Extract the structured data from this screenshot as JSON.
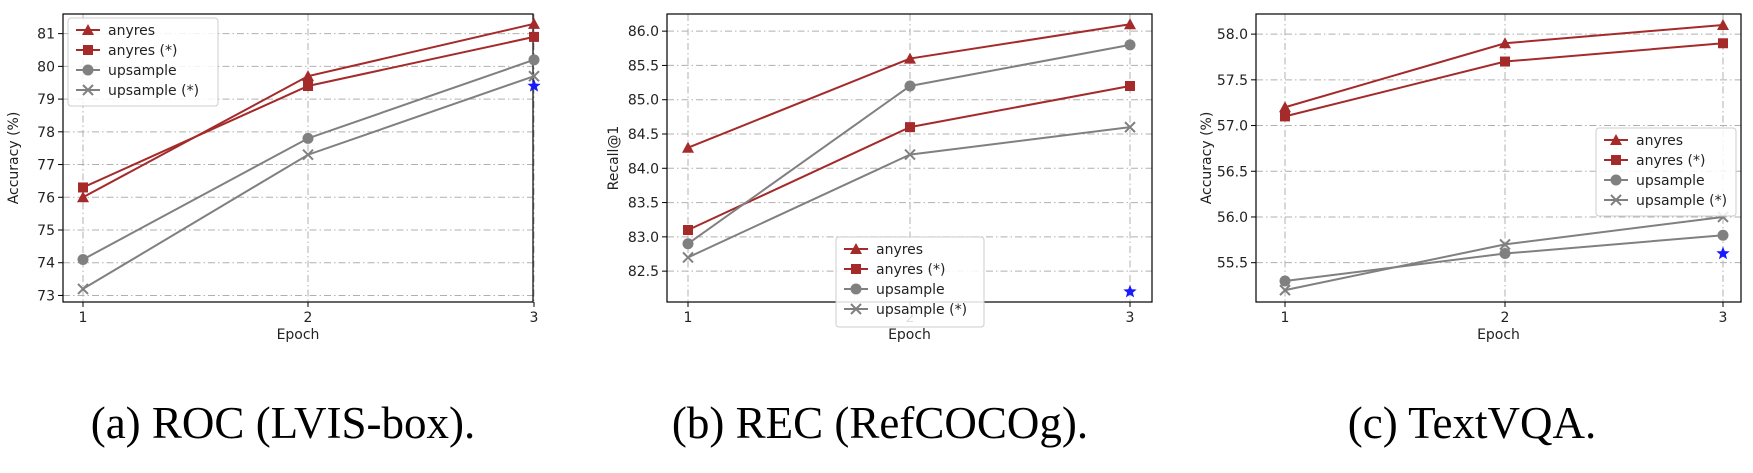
{
  "colors": {
    "anyres": "#a52a2a",
    "upsample": "#808080",
    "star": "#1a1aff",
    "grid": "#b0b0b0"
  },
  "chart_data": [
    {
      "type": "line",
      "caption": "(a) ROC (LVIS-box).",
      "xlabel": "Epoch",
      "ylabel": "Accuracy (%)",
      "x": [
        1,
        2,
        3
      ],
      "xticks": [
        "1",
        "2",
        "3"
      ],
      "yticks": [
        "73",
        "74",
        "75",
        "76",
        "77",
        "78",
        "79",
        "80",
        "81"
      ],
      "ylim": [
        72.8,
        81.6
      ],
      "grid": true,
      "legend_position": "upper-left",
      "series": [
        {
          "name": "anyres",
          "color": "#a52a2a",
          "marker": "triangle",
          "values": [
            76.0,
            79.7,
            81.3
          ]
        },
        {
          "name": "anyres (*)",
          "color": "#a52a2a",
          "marker": "square",
          "values": [
            76.3,
            79.4,
            80.9
          ]
        },
        {
          "name": "upsample",
          "color": "#808080",
          "marker": "circle",
          "values": [
            74.1,
            77.8,
            80.2
          ]
        },
        {
          "name": "upsample (*)",
          "color": "#808080",
          "marker": "x",
          "values": [
            73.2,
            77.3,
            79.7
          ]
        }
      ],
      "star_point": {
        "x": 3,
        "y": 79.4
      }
    },
    {
      "type": "line",
      "caption": "(b) REC (RefCOCOg).",
      "xlabel": "Epoch",
      "ylabel": "Recall@1",
      "x": [
        1,
        2,
        3
      ],
      "xticks": [
        "1",
        "2",
        "3"
      ],
      "yticks": [
        "82.5",
        "83.0",
        "83.5",
        "84.0",
        "84.5",
        "85.0",
        "85.5",
        "86.0"
      ],
      "ylim": [
        82.05,
        86.25
      ],
      "grid": true,
      "legend_position": "lower-right",
      "series": [
        {
          "name": "anyres",
          "color": "#a52a2a",
          "marker": "triangle",
          "values": [
            84.3,
            85.6,
            86.1
          ]
        },
        {
          "name": "anyres (*)",
          "color": "#a52a2a",
          "marker": "square",
          "values": [
            83.1,
            84.6,
            85.2
          ]
        },
        {
          "name": "upsample",
          "color": "#808080",
          "marker": "circle",
          "values": [
            82.9,
            85.2,
            85.8
          ]
        },
        {
          "name": "upsample (*)",
          "color": "#808080",
          "marker": "x",
          "values": [
            82.7,
            84.2,
            84.6
          ]
        }
      ],
      "star_point": {
        "x": 3,
        "y": 82.2
      }
    },
    {
      "type": "line",
      "caption": "(c) TextVQA.",
      "xlabel": "Epoch",
      "ylabel": "Accuracy (%)",
      "x": [
        1,
        2,
        3
      ],
      "xticks": [
        "1",
        "2",
        "3"
      ],
      "yticks": [
        "55.5",
        "56.0",
        "56.5",
        "57.0",
        "57.5",
        "58.0"
      ],
      "ylim": [
        55.07,
        58.22
      ],
      "grid": true,
      "legend_position": "center-right",
      "series": [
        {
          "name": "anyres",
          "color": "#a52a2a",
          "marker": "triangle",
          "values": [
            57.2,
            57.9,
            58.1
          ]
        },
        {
          "name": "anyres (*)",
          "color": "#a52a2a",
          "marker": "square",
          "values": [
            57.1,
            57.7,
            57.9
          ]
        },
        {
          "name": "upsample",
          "color": "#808080",
          "marker": "circle",
          "values": [
            55.3,
            55.6,
            55.8
          ]
        },
        {
          "name": "upsample (*)",
          "color": "#808080",
          "marker": "x",
          "values": [
            55.2,
            55.7,
            56.0
          ]
        }
      ],
      "star_point": {
        "x": 3,
        "y": 55.6
      }
    }
  ]
}
